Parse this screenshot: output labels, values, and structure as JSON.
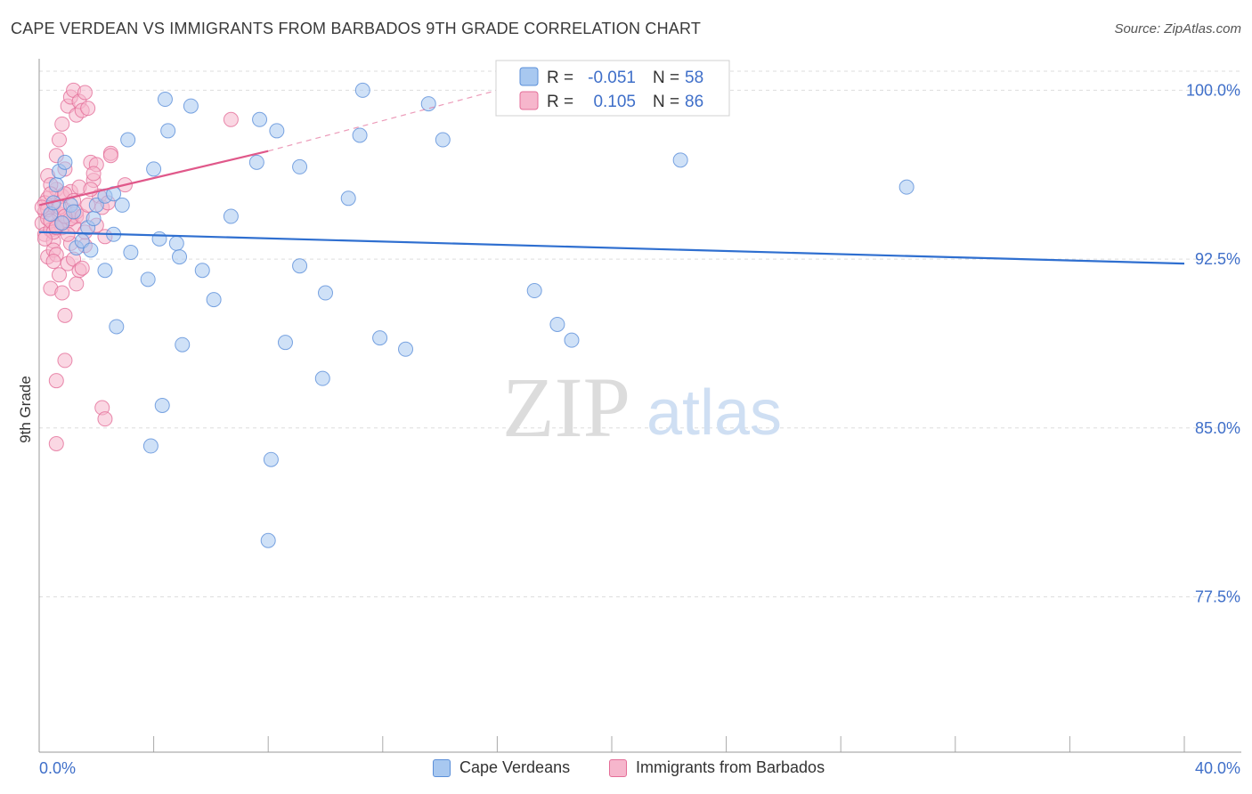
{
  "header": {
    "title": "CAPE VERDEAN VS IMMIGRANTS FROM BARBADOS 9TH GRADE CORRELATION CHART",
    "source": "Source: ZipAtlas.com"
  },
  "watermark": {
    "zip": "ZIP",
    "atlas": "atlas"
  },
  "legend": {
    "rows": [
      {
        "r_label": "R =",
        "r_value": "-0.051",
        "n_label": "N =",
        "n_value": "58"
      },
      {
        "r_label": "R =",
        "r_value": "0.105",
        "n_label": "N =",
        "n_value": "86"
      }
    ]
  },
  "bottom_legend": {
    "blue": "Cape Verdeans",
    "pink": "Immigrants from Barbados"
  },
  "colors": {
    "blue_fill": "#a8c8f0",
    "blue_stroke": "#5b8fd9",
    "blue_line": "#2f6fd0",
    "pink_fill": "#f6b6cc",
    "pink_stroke": "#e46e98",
    "pink_line": "#e0588a",
    "tick_text": "#3f6fc9",
    "grid": "#dddddd"
  },
  "chart_data": {
    "type": "scatter",
    "title": "CAPE VERDEAN VS IMMIGRANTS FROM BARBADOS 9TH GRADE CORRELATION CHART",
    "xlabel": "",
    "ylabel": "9th Grade",
    "xlim": [
      0,
      40
    ],
    "ylim": [
      70.6,
      101.4
    ],
    "x_tick_labels": [
      "0.0%",
      "40.0%"
    ],
    "y_ticks": [
      77.5,
      85.0,
      92.5,
      100.0
    ],
    "y_tick_labels": [
      "77.5%",
      "85.0%",
      "92.5%",
      "100.0%"
    ],
    "series": [
      {
        "name": "Cape Verdeans",
        "R": -0.051,
        "N": 58,
        "trend": {
          "x0": 0.0,
          "y0": 93.7,
          "x1": 40.0,
          "y1": 92.3
        },
        "points": [
          [
            0.4,
            94.5
          ],
          [
            0.6,
            95.8
          ],
          [
            0.7,
            96.4
          ],
          [
            0.9,
            96.8
          ],
          [
            1.1,
            94.9
          ],
          [
            1.3,
            93.0
          ],
          [
            1.5,
            93.3
          ],
          [
            1.7,
            93.9
          ],
          [
            1.9,
            94.3
          ],
          [
            2.0,
            94.9
          ],
          [
            2.3,
            95.3
          ],
          [
            2.6,
            95.4
          ],
          [
            2.9,
            94.9
          ],
          [
            3.1,
            97.8
          ],
          [
            3.8,
            91.6
          ],
          [
            2.3,
            92.0
          ],
          [
            2.7,
            89.5
          ],
          [
            3.2,
            92.8
          ],
          [
            3.9,
            84.2
          ],
          [
            4.0,
            96.5
          ],
          [
            4.2,
            93.4
          ],
          [
            4.3,
            86.0
          ],
          [
            4.4,
            99.6
          ],
          [
            4.5,
            98.2
          ],
          [
            4.8,
            93.2
          ],
          [
            4.9,
            92.6
          ],
          [
            5.0,
            88.7
          ],
          [
            5.3,
            99.3
          ],
          [
            5.7,
            92.0
          ],
          [
            6.1,
            90.7
          ],
          [
            6.7,
            94.4
          ],
          [
            7.6,
            96.8
          ],
          [
            7.7,
            98.7
          ],
          [
            8.0,
            80.0
          ],
          [
            8.1,
            83.6
          ],
          [
            8.3,
            98.2
          ],
          [
            8.6,
            88.8
          ],
          [
            9.1,
            96.6
          ],
          [
            9.1,
            92.2
          ],
          [
            9.9,
            87.2
          ],
          [
            10.0,
            91.0
          ],
          [
            10.8,
            95.2
          ],
          [
            11.2,
            98.0
          ],
          [
            11.3,
            100.0
          ],
          [
            11.9,
            89.0
          ],
          [
            12.8,
            88.5
          ],
          [
            13.6,
            99.4
          ],
          [
            14.1,
            97.8
          ],
          [
            17.3,
            91.1
          ],
          [
            18.1,
            89.6
          ],
          [
            18.6,
            88.9
          ],
          [
            22.4,
            96.9
          ],
          [
            30.3,
            95.7
          ],
          [
            0.5,
            95.0
          ],
          [
            0.8,
            94.1
          ],
          [
            1.2,
            94.6
          ],
          [
            1.8,
            92.9
          ],
          [
            2.6,
            93.6
          ]
        ]
      },
      {
        "name": "Immigrants from Barbados",
        "R": 0.105,
        "N": 86,
        "trend": {
          "x0": 0.0,
          "y0": 94.9,
          "x1": 8.0,
          "y1": 97.3
        },
        "trend_dashed": {
          "x0": 8.0,
          "y0": 97.3,
          "x1": 16.0,
          "y1": 100.0
        },
        "points": [
          [
            0.1,
            94.1
          ],
          [
            0.2,
            94.6
          ],
          [
            0.2,
            93.6
          ],
          [
            0.3,
            95.2
          ],
          [
            0.3,
            94.3
          ],
          [
            0.4,
            93.8
          ],
          [
            0.5,
            94.9
          ],
          [
            0.5,
            93.3
          ],
          [
            0.6,
            95.6
          ],
          [
            0.6,
            94.0
          ],
          [
            0.7,
            94.5
          ],
          [
            0.8,
            95.3
          ],
          [
            0.8,
            93.9
          ],
          [
            0.9,
            94.7
          ],
          [
            1.0,
            94.2
          ],
          [
            1.1,
            95.5
          ],
          [
            1.2,
            94.0
          ],
          [
            1.3,
            94.4
          ],
          [
            0.3,
            96.2
          ],
          [
            0.4,
            95.8
          ],
          [
            0.6,
            97.1
          ],
          [
            0.7,
            97.8
          ],
          [
            0.8,
            98.5
          ],
          [
            0.9,
            96.5
          ],
          [
            1.0,
            99.3
          ],
          [
            1.1,
            99.7
          ],
          [
            1.2,
            100.0
          ],
          [
            1.3,
            98.9
          ],
          [
            1.4,
            99.5
          ],
          [
            1.5,
            99.1
          ],
          [
            1.6,
            99.9
          ],
          [
            1.7,
            99.2
          ],
          [
            1.8,
            96.8
          ],
          [
            1.9,
            96.0
          ],
          [
            2.0,
            96.7
          ],
          [
            2.1,
            95.3
          ],
          [
            2.2,
            94.8
          ],
          [
            2.3,
            93.5
          ],
          [
            2.4,
            95.0
          ],
          [
            2.5,
            97.2
          ],
          [
            0.3,
            92.6
          ],
          [
            0.4,
            91.2
          ],
          [
            0.5,
            92.9
          ],
          [
            0.6,
            92.7
          ],
          [
            0.7,
            91.8
          ],
          [
            0.8,
            91.0
          ],
          [
            0.9,
            90.0
          ],
          [
            1.0,
            92.3
          ],
          [
            1.1,
            93.2
          ],
          [
            1.2,
            92.5
          ],
          [
            1.3,
            91.4
          ],
          [
            1.4,
            92.0
          ],
          [
            1.5,
            92.1
          ],
          [
            1.6,
            93.1
          ],
          [
            0.6,
            87.1
          ],
          [
            0.9,
            88.0
          ],
          [
            0.6,
            84.3
          ],
          [
            2.2,
            85.9
          ],
          [
            2.3,
            85.4
          ],
          [
            2.5,
            97.1
          ],
          [
            3.0,
            95.8
          ],
          [
            6.7,
            98.7
          ],
          [
            0.2,
            95.0
          ],
          [
            0.3,
            94.7
          ],
          [
            0.4,
            94.2
          ],
          [
            0.5,
            93.7
          ],
          [
            0.6,
            93.9
          ],
          [
            0.7,
            94.8
          ],
          [
            0.8,
            94.1
          ],
          [
            0.9,
            95.4
          ],
          [
            1.0,
            93.6
          ],
          [
            1.1,
            94.3
          ],
          [
            1.2,
            95.1
          ],
          [
            1.3,
            94.6
          ],
          [
            1.4,
            95.7
          ],
          [
            1.5,
            94.4
          ],
          [
            1.6,
            93.7
          ],
          [
            1.7,
            94.9
          ],
          [
            1.8,
            95.6
          ],
          [
            1.9,
            96.3
          ],
          [
            0.2,
            93.4
          ],
          [
            0.1,
            94.8
          ],
          [
            0.4,
            95.4
          ],
          [
            0.5,
            92.4
          ],
          [
            0.9,
            94.4
          ],
          [
            2.0,
            94.0
          ]
        ]
      }
    ]
  }
}
